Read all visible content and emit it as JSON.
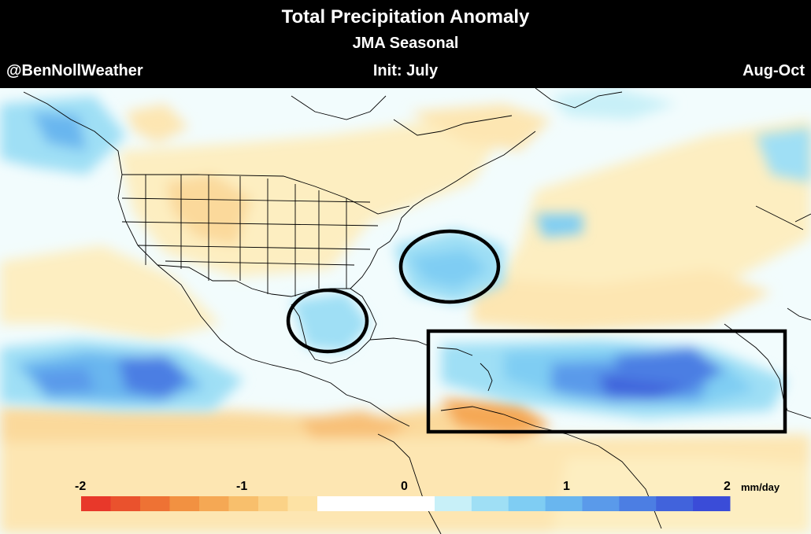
{
  "header": {
    "title": "Total Precipitation Anomaly",
    "subtitle": "JMA Seasonal",
    "handle": "@BenNollWeather",
    "init": "Init: July",
    "season": "Aug-Oct"
  },
  "colorbar": {
    "ticks": [
      "-2",
      "-1",
      "0",
      "1",
      "2"
    ],
    "units": "mm/day",
    "range": [
      -2,
      2
    ],
    "negative_colors": [
      "#e8382a",
      "#ea522d",
      "#ee7234",
      "#f29141",
      "#f5a854",
      "#f8bf6c",
      "#fbd287",
      "#fde2a4"
    ],
    "positive_colors": [
      "#c8f0f8",
      "#9fdff5",
      "#7fcdf3",
      "#69b6ef",
      "#5a9aea",
      "#4c7ee3",
      "#4163dc",
      "#3a4cd8"
    ]
  },
  "colors": {
    "neutral": "#f2fcfd",
    "land_line": "#000000",
    "annotation": "#000000"
  }
}
